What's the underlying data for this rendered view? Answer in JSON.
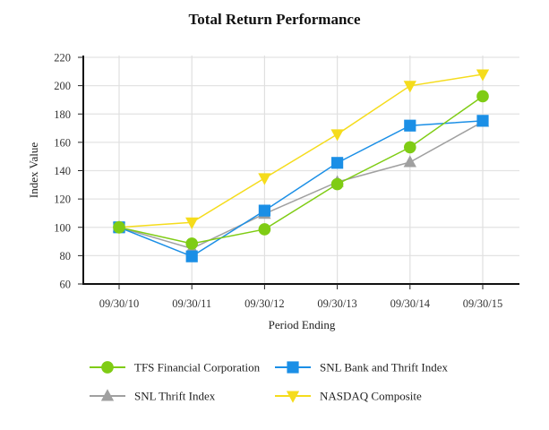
{
  "chart_data": {
    "type": "line",
    "title": "Total Return Performance",
    "xlabel": "Period Ending",
    "ylabel": "Index Value",
    "ylim": [
      60,
      220
    ],
    "yticks": [
      60,
      80,
      100,
      120,
      140,
      160,
      180,
      200,
      220
    ],
    "grid": true,
    "legend_position": "bottom",
    "categories": [
      "09/30/10",
      "09/30/11",
      "09/30/12",
      "09/30/13",
      "09/30/14",
      "09/30/15"
    ],
    "series": [
      {
        "name": "TFS Financial Corporation",
        "color": "#7fcc14",
        "marker": "circle",
        "values": [
          100,
          88.5,
          98.6,
          130.5,
          156.5,
          192.5
        ]
      },
      {
        "name": "SNL Bank and Thrift Index",
        "color": "#1b8fe6",
        "marker": "square",
        "values": [
          100,
          79.5,
          111.8,
          145.5,
          171.8,
          175.2
        ]
      },
      {
        "name": "SNL Thrift Index",
        "color": "#a0a0a0",
        "marker": "triangle-up",
        "values": [
          100,
          85.0,
          109.5,
          132.0,
          146.0,
          174.5
        ]
      },
      {
        "name": "NASDAQ Composite",
        "color": "#f5dc1c",
        "marker": "triangle-down",
        "values": [
          100,
          103.5,
          134.7,
          165.7,
          199.9,
          208.0
        ]
      }
    ]
  }
}
